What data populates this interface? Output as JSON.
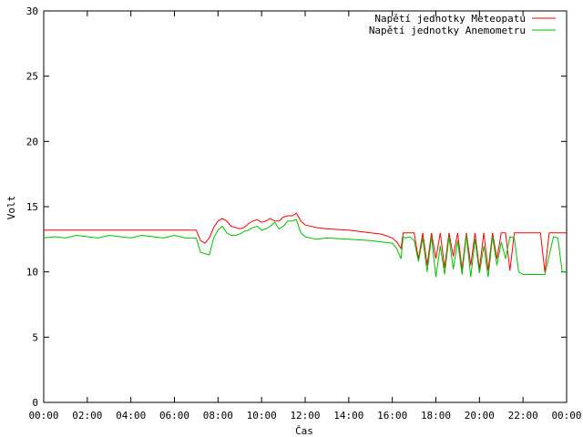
{
  "chart_data": {
    "type": "line",
    "xlabel": "Čas",
    "ylabel": "Volt",
    "ylim": [
      0,
      30
    ],
    "xlim": [
      0,
      24
    ],
    "yticks": [
      "0",
      "5",
      "10",
      "15",
      "20",
      "25",
      "30"
    ],
    "xticks": [
      "00:00",
      "02:00",
      "04:00",
      "06:00",
      "08:00",
      "10:00",
      "12:00",
      "14:00",
      "16:00",
      "18:00",
      "20:00",
      "22:00",
      "00:00"
    ],
    "legend_position": "top-right",
    "grid": false,
    "series": [
      {
        "name": "Napětí jednotky Meteopatu",
        "color": "#ff0000",
        "x": [
          0,
          1,
          2,
          3,
          4,
          5,
          6,
          7,
          7.2,
          7.4,
          7.6,
          7.8,
          8.0,
          8.2,
          8.4,
          8.6,
          8.8,
          9.0,
          9.2,
          9.4,
          9.6,
          9.8,
          10.0,
          10.2,
          10.4,
          10.6,
          10.8,
          11.0,
          11.2,
          11.4,
          11.6,
          11.8,
          12.0,
          12.5,
          13.0,
          14.0,
          15.0,
          15.5,
          16.0,
          16.2,
          16.4,
          16.5,
          16.6,
          16.8,
          17.0,
          17.2,
          17.4,
          17.6,
          17.8,
          18.0,
          18.2,
          18.4,
          18.6,
          18.8,
          19.0,
          19.2,
          19.4,
          19.6,
          19.8,
          20.0,
          20.2,
          20.4,
          20.6,
          20.8,
          21.0,
          21.2,
          21.4,
          21.6,
          21.8,
          22.0,
          22.4,
          22.8,
          23.0,
          23.2,
          23.4,
          23.6,
          23.8,
          24.0
        ],
        "values": [
          13.2,
          13.2,
          13.2,
          13.2,
          13.2,
          13.2,
          13.2,
          13.2,
          12.4,
          12.2,
          12.6,
          13.4,
          13.9,
          14.1,
          13.9,
          13.5,
          13.4,
          13.3,
          13.4,
          13.7,
          13.9,
          14.0,
          13.8,
          13.9,
          14.1,
          13.9,
          13.9,
          14.2,
          14.3,
          14.3,
          14.5,
          13.9,
          13.6,
          13.4,
          13.3,
          13.2,
          13.0,
          12.9,
          12.6,
          12.3,
          11.8,
          13.0,
          13.0,
          13.0,
          13.0,
          11.0,
          13.0,
          10.5,
          13.0,
          11.0,
          13.0,
          10.3,
          13.0,
          11.2,
          13.0,
          10.2,
          13.0,
          10.5,
          13.0,
          10.2,
          13.0,
          10.1,
          13.0,
          11.0,
          13.0,
          13.0,
          10.1,
          13.0,
          13.0,
          13.0,
          13.0,
          13.0,
          10.0,
          13.0,
          13.0,
          13.0,
          13.0,
          13.0
        ]
      },
      {
        "name": "Napětí jednotky Anemometru",
        "color": "#00c000",
        "x": [
          0,
          0.5,
          1,
          1.5,
          2,
          2.5,
          3,
          3.5,
          4,
          4.5,
          5,
          5.5,
          6,
          6.5,
          7,
          7.2,
          7.4,
          7.6,
          7.8,
          8.0,
          8.2,
          8.4,
          8.6,
          8.8,
          9.0,
          9.2,
          9.4,
          9.6,
          9.8,
          10.0,
          10.2,
          10.4,
          10.6,
          10.8,
          11.0,
          11.2,
          11.4,
          11.6,
          11.8,
          12.0,
          12.5,
          13.0,
          14.0,
          15.0,
          15.5,
          16.0,
          16.2,
          16.4,
          16.5,
          16.6,
          16.8,
          17.0,
          17.2,
          17.4,
          17.6,
          17.8,
          18.0,
          18.2,
          18.4,
          18.6,
          18.8,
          19.0,
          19.2,
          19.4,
          19.6,
          19.8,
          20.0,
          20.2,
          20.4,
          20.6,
          20.8,
          21.0,
          21.2,
          21.4,
          21.6,
          21.8,
          22.0,
          22.4,
          22.8,
          23.0,
          23.4,
          23.6,
          23.8,
          24.0
        ],
        "values": [
          12.6,
          12.7,
          12.6,
          12.8,
          12.7,
          12.6,
          12.8,
          12.7,
          12.6,
          12.8,
          12.7,
          12.6,
          12.8,
          12.6,
          12.6,
          11.5,
          11.4,
          11.3,
          12.6,
          13.2,
          13.5,
          13.0,
          12.8,
          12.8,
          12.9,
          13.1,
          13.2,
          13.4,
          13.5,
          13.2,
          13.3,
          13.5,
          13.8,
          13.3,
          13.5,
          13.9,
          13.9,
          14.0,
          13.0,
          12.7,
          12.5,
          12.6,
          12.5,
          12.4,
          12.3,
          12.2,
          11.8,
          11.0,
          12.7,
          12.6,
          12.7,
          12.4,
          10.8,
          12.6,
          10.0,
          12.7,
          9.6,
          12.0,
          9.8,
          12.7,
          10.2,
          12.4,
          9.8,
          12.8,
          9.6,
          12.5,
          9.9,
          12.0,
          9.6,
          12.7,
          10.5,
          12.3,
          11.0,
          12.7,
          12.6,
          10.0,
          9.8,
          9.8,
          9.8,
          9.8,
          12.7,
          12.6,
          10.0,
          10.0
        ]
      }
    ]
  }
}
